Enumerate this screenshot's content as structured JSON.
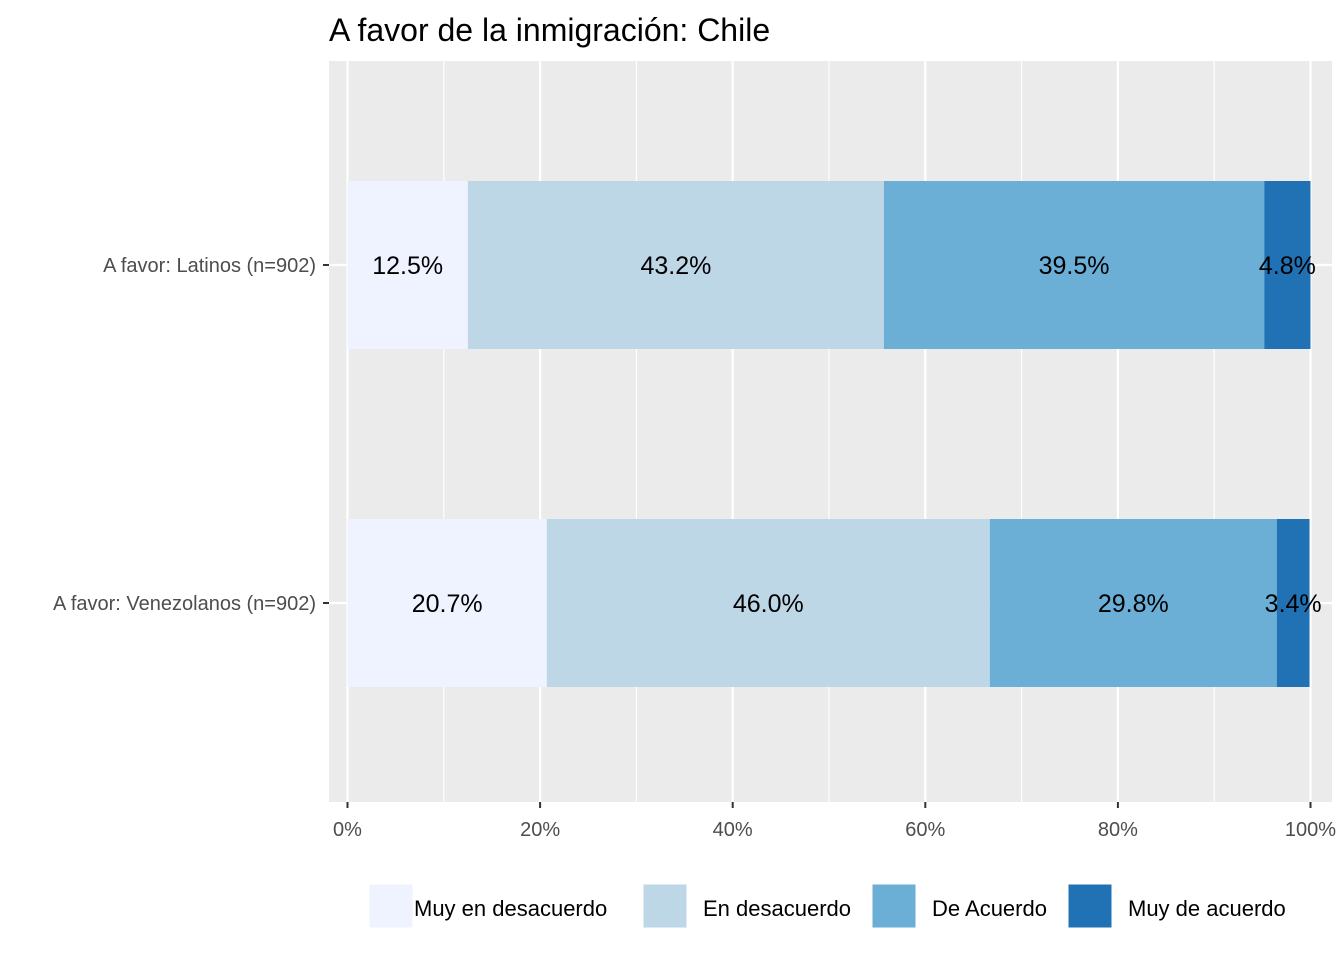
{
  "chart_data": {
    "type": "bar",
    "orientation": "horizontal",
    "stacked": true,
    "title": "A favor de la inmigración: Chile",
    "xlabel": "",
    "ylabel": "",
    "xlim": [
      0,
      100
    ],
    "x_ticks": [
      "0%",
      "20%",
      "40%",
      "60%",
      "80%",
      "100%"
    ],
    "grid": true,
    "legend_position": "bottom",
    "categories": [
      "A favor: Latinos (n=902)",
      "A favor: Venezolanos (n=902)"
    ],
    "series": [
      {
        "name": "Muy en desacuerdo",
        "color": "#eff3ff",
        "values": [
          12.5,
          20.7
        ],
        "labels": [
          "12.5%",
          "20.7%"
        ]
      },
      {
        "name": "En desacuerdo",
        "color": "#bdd7e7",
        "values": [
          43.2,
          46.0
        ],
        "labels": [
          "43.2%",
          "46.0%"
        ]
      },
      {
        "name": "De Acuerdo",
        "color": "#6baed6",
        "values": [
          39.5,
          29.8
        ],
        "labels": [
          "39.5%",
          "29.8%"
        ]
      },
      {
        "name": "Muy de acuerdo",
        "color": "#2171b5",
        "values": [
          4.8,
          3.4
        ],
        "labels": [
          "4.8%",
          "3.4%"
        ]
      }
    ],
    "panel_background": "#ebebeb"
  }
}
